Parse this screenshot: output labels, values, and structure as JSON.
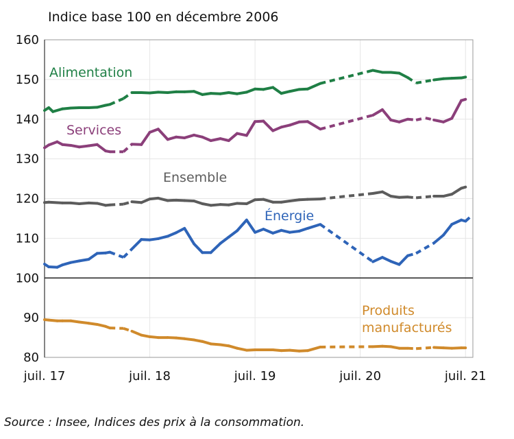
{
  "chart_data": {
    "type": "line",
    "title": "",
    "subtitle": "Indice base 100 en décembre 2006",
    "xlabel": "",
    "ylabel": "",
    "ylim": [
      80,
      160
    ],
    "yticks": [
      80,
      90,
      100,
      110,
      120,
      130,
      140,
      150,
      160
    ],
    "xticks": [
      {
        "x": 2017.5,
        "label": "juil. 17"
      },
      {
        "x": 2018.5,
        "label": "juil. 18"
      },
      {
        "x": 2019.5,
        "label": "juil. 19"
      },
      {
        "x": 2020.5,
        "label": "juil. 20"
      },
      {
        "x": 2021.5,
        "label": "juil. 21"
      }
    ],
    "grid": true,
    "reference_line": 100,
    "solid_segments": [
      [
        2017.5,
        2018.12
      ],
      [
        2018.33,
        2020.12
      ],
      [
        2020.62,
        2020.95
      ],
      [
        2021.2,
        2021.5
      ]
    ],
    "series": [
      {
        "name": "Alimentation",
        "color": "#1f7f45",
        "points": [
          [
            2017.5,
            142.2
          ],
          [
            2017.54,
            142.9
          ],
          [
            2017.58,
            141.9
          ],
          [
            2017.67,
            142.6
          ],
          [
            2017.75,
            142.8
          ],
          [
            2017.83,
            142.9
          ],
          [
            2017.92,
            142.9
          ],
          [
            2018.0,
            143.0
          ],
          [
            2018.08,
            143.5
          ],
          [
            2018.12,
            143.7
          ],
          [
            2018.25,
            145.2
          ],
          [
            2018.33,
            146.7
          ],
          [
            2018.42,
            146.7
          ],
          [
            2018.5,
            146.6
          ],
          [
            2018.58,
            146.8
          ],
          [
            2018.67,
            146.7
          ],
          [
            2018.75,
            146.9
          ],
          [
            2018.83,
            146.9
          ],
          [
            2018.92,
            147.0
          ],
          [
            2019.0,
            146.2
          ],
          [
            2019.08,
            146.5
          ],
          [
            2019.17,
            146.4
          ],
          [
            2019.25,
            146.7
          ],
          [
            2019.33,
            146.4
          ],
          [
            2019.42,
            146.8
          ],
          [
            2019.5,
            147.6
          ],
          [
            2019.58,
            147.5
          ],
          [
            2019.67,
            148.0
          ],
          [
            2019.75,
            146.5
          ],
          [
            2019.83,
            147.0
          ],
          [
            2019.92,
            147.5
          ],
          [
            2020.0,
            147.6
          ],
          [
            2020.12,
            149.0
          ],
          [
            2020.62,
            152.3
          ],
          [
            2020.71,
            151.8
          ],
          [
            2020.79,
            151.8
          ],
          [
            2020.87,
            151.6
          ],
          [
            2020.95,
            150.5
          ],
          [
            2021.03,
            149.1
          ],
          [
            2021.2,
            149.9
          ],
          [
            2021.29,
            150.2
          ],
          [
            2021.37,
            150.3
          ],
          [
            2021.46,
            150.4
          ],
          [
            2021.5,
            150.6
          ]
        ]
      },
      {
        "name": "Services",
        "color": "#8b3f7a",
        "points": [
          [
            2017.5,
            132.8
          ],
          [
            2017.54,
            133.5
          ],
          [
            2017.62,
            134.3
          ],
          [
            2017.67,
            133.6
          ],
          [
            2017.75,
            133.4
          ],
          [
            2017.83,
            133.0
          ],
          [
            2017.92,
            133.3
          ],
          [
            2018.0,
            133.6
          ],
          [
            2018.08,
            132.0
          ],
          [
            2018.12,
            131.8
          ],
          [
            2018.25,
            131.8
          ],
          [
            2018.33,
            133.7
          ],
          [
            2018.42,
            133.6
          ],
          [
            2018.5,
            136.7
          ],
          [
            2018.58,
            137.5
          ],
          [
            2018.67,
            134.9
          ],
          [
            2018.75,
            135.5
          ],
          [
            2018.83,
            135.3
          ],
          [
            2018.92,
            136.0
          ],
          [
            2019.0,
            135.5
          ],
          [
            2019.08,
            134.6
          ],
          [
            2019.17,
            135.1
          ],
          [
            2019.25,
            134.6
          ],
          [
            2019.33,
            136.4
          ],
          [
            2019.42,
            135.9
          ],
          [
            2019.5,
            139.4
          ],
          [
            2019.58,
            139.5
          ],
          [
            2019.67,
            137.1
          ],
          [
            2019.75,
            138.0
          ],
          [
            2019.83,
            138.5
          ],
          [
            2019.92,
            139.3
          ],
          [
            2020.0,
            139.4
          ],
          [
            2020.12,
            137.5
          ],
          [
            2020.62,
            141.0
          ],
          [
            2020.71,
            142.4
          ],
          [
            2020.79,
            139.8
          ],
          [
            2020.87,
            139.3
          ],
          [
            2020.95,
            140.0
          ],
          [
            2021.03,
            139.8
          ],
          [
            2021.12,
            140.3
          ],
          [
            2021.2,
            139.8
          ],
          [
            2021.29,
            139.3
          ],
          [
            2021.37,
            140.2
          ],
          [
            2021.46,
            144.7
          ],
          [
            2021.5,
            145.0
          ]
        ]
      },
      {
        "name": "Ensemble",
        "color": "#5c5c5c",
        "points": [
          [
            2017.5,
            119.0
          ],
          [
            2017.54,
            119.1
          ],
          [
            2017.67,
            118.9
          ],
          [
            2017.75,
            118.9
          ],
          [
            2017.83,
            118.7
          ],
          [
            2017.92,
            118.9
          ],
          [
            2018.0,
            118.8
          ],
          [
            2018.08,
            118.3
          ],
          [
            2018.12,
            118.4
          ],
          [
            2018.25,
            118.6
          ],
          [
            2018.33,
            119.2
          ],
          [
            2018.42,
            119.0
          ],
          [
            2018.5,
            119.9
          ],
          [
            2018.58,
            120.1
          ],
          [
            2018.67,
            119.5
          ],
          [
            2018.75,
            119.6
          ],
          [
            2018.83,
            119.5
          ],
          [
            2018.92,
            119.4
          ],
          [
            2019.0,
            118.7
          ],
          [
            2019.08,
            118.3
          ],
          [
            2019.17,
            118.5
          ],
          [
            2019.25,
            118.4
          ],
          [
            2019.33,
            118.8
          ],
          [
            2019.42,
            118.7
          ],
          [
            2019.5,
            119.7
          ],
          [
            2019.58,
            119.8
          ],
          [
            2019.67,
            119.1
          ],
          [
            2019.75,
            119.1
          ],
          [
            2019.83,
            119.4
          ],
          [
            2019.92,
            119.7
          ],
          [
            2020.0,
            119.8
          ],
          [
            2020.12,
            119.9
          ],
          [
            2020.62,
            121.3
          ],
          [
            2020.71,
            121.7
          ],
          [
            2020.79,
            120.6
          ],
          [
            2020.87,
            120.3
          ],
          [
            2020.95,
            120.4
          ],
          [
            2021.03,
            120.2
          ],
          [
            2021.2,
            120.6
          ],
          [
            2021.29,
            120.6
          ],
          [
            2021.37,
            121.1
          ],
          [
            2021.46,
            122.6
          ],
          [
            2021.5,
            122.9
          ]
        ]
      },
      {
        "name": "Énergie",
        "color": "#2e64b8",
        "points": [
          [
            2017.5,
            103.5
          ],
          [
            2017.54,
            102.8
          ],
          [
            2017.62,
            102.7
          ],
          [
            2017.67,
            103.3
          ],
          [
            2017.75,
            103.9
          ],
          [
            2017.83,
            104.3
          ],
          [
            2017.92,
            104.7
          ],
          [
            2018.0,
            106.2
          ],
          [
            2018.08,
            106.3
          ],
          [
            2018.12,
            106.5
          ],
          [
            2018.25,
            105.2
          ],
          [
            2018.33,
            107.3
          ],
          [
            2018.42,
            109.7
          ],
          [
            2018.5,
            109.6
          ],
          [
            2018.58,
            109.9
          ],
          [
            2018.67,
            110.5
          ],
          [
            2018.75,
            111.4
          ],
          [
            2018.83,
            112.5
          ],
          [
            2018.92,
            108.6
          ],
          [
            2019.0,
            106.4
          ],
          [
            2019.08,
            106.4
          ],
          [
            2019.17,
            108.7
          ],
          [
            2019.25,
            110.3
          ],
          [
            2019.33,
            111.9
          ],
          [
            2019.42,
            114.6
          ],
          [
            2019.5,
            111.5
          ],
          [
            2019.58,
            112.3
          ],
          [
            2019.67,
            111.3
          ],
          [
            2019.75,
            112.0
          ],
          [
            2019.83,
            111.5
          ],
          [
            2019.92,
            111.8
          ],
          [
            2020.0,
            112.5
          ],
          [
            2020.12,
            113.5
          ],
          [
            2020.62,
            104.1
          ],
          [
            2020.71,
            105.2
          ],
          [
            2020.79,
            104.2
          ],
          [
            2020.87,
            103.4
          ],
          [
            2020.95,
            105.6
          ],
          [
            2021.03,
            106.2
          ],
          [
            2021.2,
            108.8
          ],
          [
            2021.29,
            110.8
          ],
          [
            2021.37,
            113.5
          ],
          [
            2021.46,
            114.6
          ],
          [
            2021.5,
            114.3
          ],
          [
            2021.55,
            115.5
          ]
        ]
      },
      {
        "name": "Produits manufacturés",
        "name_lines": [
          "Produits",
          "manufacturés"
        ],
        "color": "#d08a2b",
        "points": [
          [
            2017.5,
            89.5
          ],
          [
            2017.54,
            89.4
          ],
          [
            2017.62,
            89.2
          ],
          [
            2017.67,
            89.2
          ],
          [
            2017.75,
            89.2
          ],
          [
            2017.83,
            88.9
          ],
          [
            2017.92,
            88.6
          ],
          [
            2018.0,
            88.3
          ],
          [
            2018.08,
            87.8
          ],
          [
            2018.12,
            87.4
          ],
          [
            2018.25,
            87.3
          ],
          [
            2018.33,
            86.6
          ],
          [
            2018.42,
            85.6
          ],
          [
            2018.5,
            85.2
          ],
          [
            2018.58,
            85.0
          ],
          [
            2018.67,
            85.0
          ],
          [
            2018.75,
            84.9
          ],
          [
            2018.83,
            84.7
          ],
          [
            2018.92,
            84.4
          ],
          [
            2019.0,
            84.0
          ],
          [
            2019.08,
            83.4
          ],
          [
            2019.17,
            83.2
          ],
          [
            2019.25,
            82.9
          ],
          [
            2019.33,
            82.3
          ],
          [
            2019.42,
            81.8
          ],
          [
            2019.5,
            81.9
          ],
          [
            2019.58,
            81.9
          ],
          [
            2019.67,
            81.9
          ],
          [
            2019.75,
            81.7
          ],
          [
            2019.83,
            81.8
          ],
          [
            2019.92,
            81.6
          ],
          [
            2020.0,
            81.7
          ],
          [
            2020.12,
            82.6
          ],
          [
            2020.62,
            82.7
          ],
          [
            2020.71,
            82.8
          ],
          [
            2020.79,
            82.7
          ],
          [
            2020.87,
            82.3
          ],
          [
            2020.95,
            82.3
          ],
          [
            2021.03,
            82.2
          ],
          [
            2021.2,
            82.5
          ],
          [
            2021.29,
            82.4
          ],
          [
            2021.37,
            82.3
          ],
          [
            2021.46,
            82.4
          ],
          [
            2021.5,
            82.4
          ]
        ]
      }
    ]
  },
  "source": "Source : Insee, Indices des prix à la consommation."
}
